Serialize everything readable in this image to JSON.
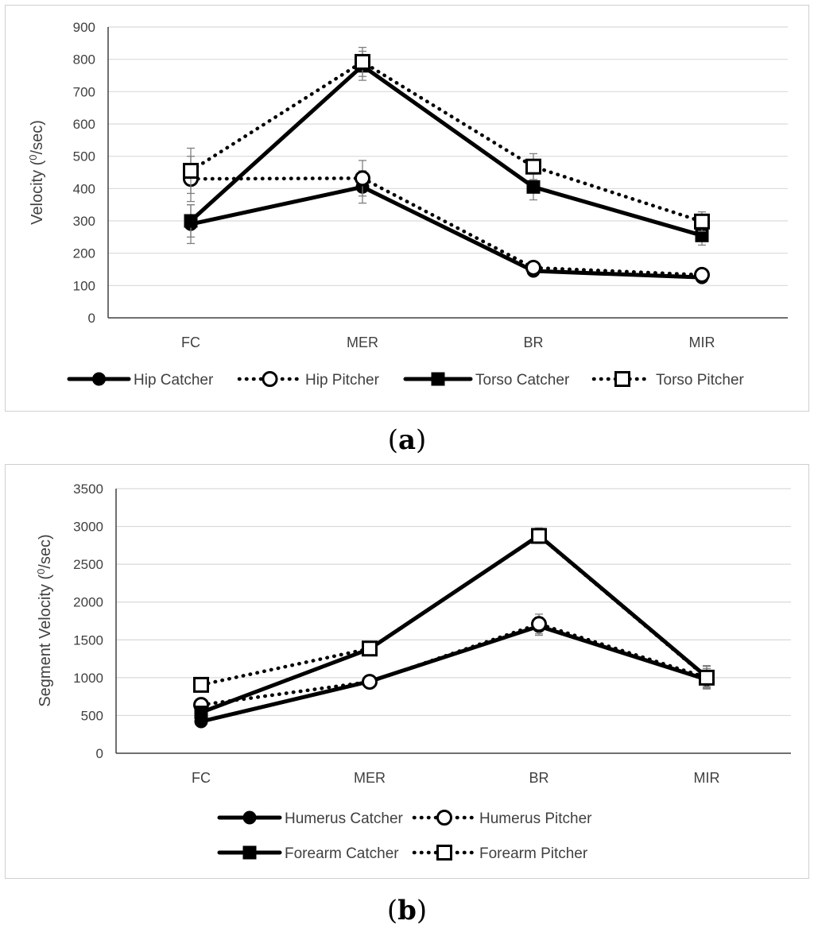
{
  "captions": {
    "a": "a",
    "b": "b"
  },
  "chart_data": [
    {
      "id": "a",
      "type": "line",
      "categories": [
        "FC",
        "MER",
        "BR",
        "MIR"
      ],
      "ylabel": "Velocity (⁰/sec)",
      "ylabel_prefix": "Velocity (",
      "ylabel_sup": "0",
      "ylabel_suffix": "/sec)",
      "xlabel": "",
      "ylim": [
        0,
        900
      ],
      "yticks": [
        0,
        100,
        200,
        300,
        400,
        500,
        600,
        700,
        800,
        900
      ],
      "grid": true,
      "legend": "bottom",
      "series": [
        {
          "name": "Hip Catcher",
          "style": "solid",
          "marker": "filled-circle",
          "values": [
            290,
            405,
            145,
            125
          ],
          "error": [
            60,
            50,
            15,
            15
          ]
        },
        {
          "name": "Hip Pitcher",
          "style": "dotted",
          "marker": "open-circle",
          "values": [
            430,
            432,
            155,
            133
          ],
          "error": [
            70,
            55,
            15,
            15
          ]
        },
        {
          "name": "Torso Catcher",
          "style": "solid",
          "marker": "filled-square",
          "values": [
            300,
            780,
            405,
            255
          ],
          "error": [
            50,
            45,
            40,
            30
          ]
        },
        {
          "name": "Torso Pitcher",
          "style": "dotted",
          "marker": "open-square",
          "values": [
            455,
            792,
            468,
            298
          ],
          "error": [
            70,
            45,
            40,
            30
          ]
        }
      ]
    },
    {
      "id": "b",
      "type": "line",
      "categories": [
        "FC",
        "MER",
        "BR",
        "MIR"
      ],
      "ylabel": "Segment Velocity (⁰/sec)",
      "ylabel_prefix": "Segment Velocity (",
      "ylabel_sup": "0",
      "ylabel_suffix": "/sec)",
      "xlabel": "",
      "ylim": [
        0,
        3500
      ],
      "yticks": [
        0,
        500,
        1000,
        1500,
        2000,
        2500,
        3000,
        3500
      ],
      "grid": true,
      "legend": "bottom",
      "series": [
        {
          "name": "Humerus Catcher",
          "style": "solid",
          "marker": "filled-circle",
          "values": [
            420,
            950,
            1680,
            975
          ],
          "error": [
            60,
            60,
            120,
            100
          ]
        },
        {
          "name": "Humerus Pitcher",
          "style": "dotted",
          "marker": "open-circle",
          "values": [
            640,
            945,
            1710,
            1000
          ],
          "error": [
            80,
            60,
            130,
            120
          ]
        },
        {
          "name": "Forearm Catcher",
          "style": "solid",
          "marker": "filled-square",
          "values": [
            540,
            1380,
            2880,
            1010
          ],
          "error": [
            60,
            60,
            100,
            150
          ]
        },
        {
          "name": "Forearm Pitcher",
          "style": "dotted",
          "marker": "open-square",
          "values": [
            905,
            1385,
            2875,
            1000
          ],
          "error": [
            80,
            60,
            100,
            150
          ]
        }
      ]
    }
  ]
}
